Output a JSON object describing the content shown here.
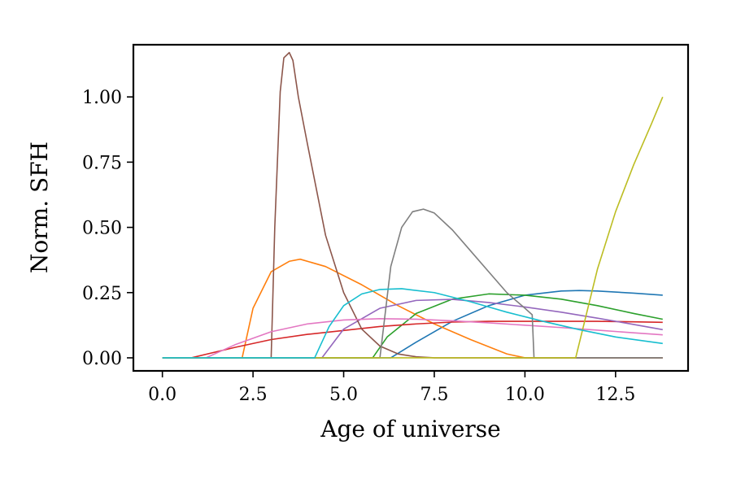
{
  "chart_data": {
    "type": "line",
    "title": "",
    "xlabel": "Age of universe",
    "ylabel": "Norm. SFH",
    "xlim": [
      -0.8,
      14.5
    ],
    "ylim": [
      -0.05,
      1.2
    ],
    "xticks": [
      0.0,
      2.5,
      5.0,
      7.5,
      10.0,
      12.5
    ],
    "xtick_labels": [
      "0.0",
      "2.5",
      "5.0",
      "7.5",
      "10.0",
      "12.5"
    ],
    "yticks": [
      0.0,
      0.25,
      0.5,
      0.75,
      1.0
    ],
    "ytick_labels": [
      "0.00",
      "0.25",
      "0.50",
      "0.75",
      "1.00"
    ],
    "grid": false,
    "legend": "none",
    "series": [
      {
        "color": "#1f77b4",
        "x": [
          0,
          6.3,
          7,
          8,
          9,
          10,
          11,
          11.5,
          12,
          13,
          13.8
        ],
        "y": [
          0,
          0,
          0.06,
          0.14,
          0.2,
          0.24,
          0.256,
          0.258,
          0.256,
          0.248,
          0.24
        ]
      },
      {
        "color": "#ff7f0e",
        "x": [
          0,
          2.2,
          2.5,
          3.0,
          3.5,
          3.8,
          4.5,
          5.5,
          6.5,
          7.5,
          8.5,
          9.5,
          10.0,
          13.8
        ],
        "y": [
          0,
          0,
          0.19,
          0.33,
          0.37,
          0.378,
          0.35,
          0.28,
          0.2,
          0.13,
          0.07,
          0.015,
          0,
          0
        ]
      },
      {
        "color": "#2ca02c",
        "x": [
          0,
          5.8,
          6.2,
          7,
          8,
          9,
          10,
          11,
          12,
          13,
          13.8
        ],
        "y": [
          0,
          0,
          0.08,
          0.17,
          0.225,
          0.245,
          0.24,
          0.225,
          0.2,
          0.17,
          0.148
        ]
      },
      {
        "color": "#d62728",
        "x": [
          0,
          0.8,
          2,
          3,
          4,
          5,
          6,
          7,
          8,
          9,
          10,
          11,
          12,
          13,
          13.8
        ],
        "y": [
          0,
          0,
          0.04,
          0.07,
          0.09,
          0.105,
          0.12,
          0.13,
          0.137,
          0.14,
          0.14,
          0.14,
          0.14,
          0.138,
          0.136
        ]
      },
      {
        "color": "#9467bd",
        "x": [
          0,
          4.4,
          5,
          6,
          7,
          8,
          9,
          10,
          11,
          12,
          13,
          13.8
        ],
        "y": [
          0,
          0,
          0.11,
          0.19,
          0.22,
          0.224,
          0.212,
          0.195,
          0.175,
          0.152,
          0.128,
          0.108
        ]
      },
      {
        "color": "#8c564b",
        "x": [
          0,
          3.0,
          3.1,
          3.25,
          3.35,
          3.5,
          3.6,
          3.75,
          4.0,
          4.5,
          5.0,
          5.5,
          6.0,
          6.5,
          7.0,
          7.5,
          13.8
        ],
        "y": [
          0,
          0,
          0.5,
          1.02,
          1.15,
          1.17,
          1.14,
          1.0,
          0.82,
          0.47,
          0.25,
          0.11,
          0.045,
          0.015,
          0.004,
          0,
          0
        ]
      },
      {
        "color": "#e377c2",
        "x": [
          0,
          1.2,
          2,
          3,
          4,
          5,
          6,
          7,
          8,
          9,
          10,
          11,
          12,
          13,
          13.8
        ],
        "y": [
          0,
          0,
          0.05,
          0.1,
          0.13,
          0.145,
          0.15,
          0.148,
          0.142,
          0.134,
          0.125,
          0.116,
          0.106,
          0.096,
          0.088
        ]
      },
      {
        "color": "#7f7f7f",
        "x": [
          0,
          6.0,
          6.3,
          6.6,
          6.9,
          7.2,
          7.5,
          8,
          8.5,
          9,
          9.5,
          10.0,
          10.2,
          10.25,
          13.8
        ],
        "y": [
          0,
          0,
          0.35,
          0.5,
          0.56,
          0.57,
          0.555,
          0.49,
          0.41,
          0.33,
          0.25,
          0.19,
          0.165,
          0,
          0
        ]
      },
      {
        "color": "#bcbd22",
        "x": [
          0,
          11.4,
          12,
          12.5,
          13,
          13.5,
          13.8
        ],
        "y": [
          0,
          0,
          0.34,
          0.56,
          0.74,
          0.9,
          1.0
        ]
      },
      {
        "color": "#17becf",
        "x": [
          0,
          4.2,
          4.6,
          5.0,
          5.5,
          6.0,
          6.6,
          7.5,
          8.5,
          9.5,
          10.5,
          11.5,
          12.5,
          13.8
        ],
        "y": [
          0,
          0,
          0.12,
          0.2,
          0.245,
          0.262,
          0.265,
          0.25,
          0.215,
          0.175,
          0.14,
          0.108,
          0.08,
          0.055
        ]
      }
    ]
  }
}
